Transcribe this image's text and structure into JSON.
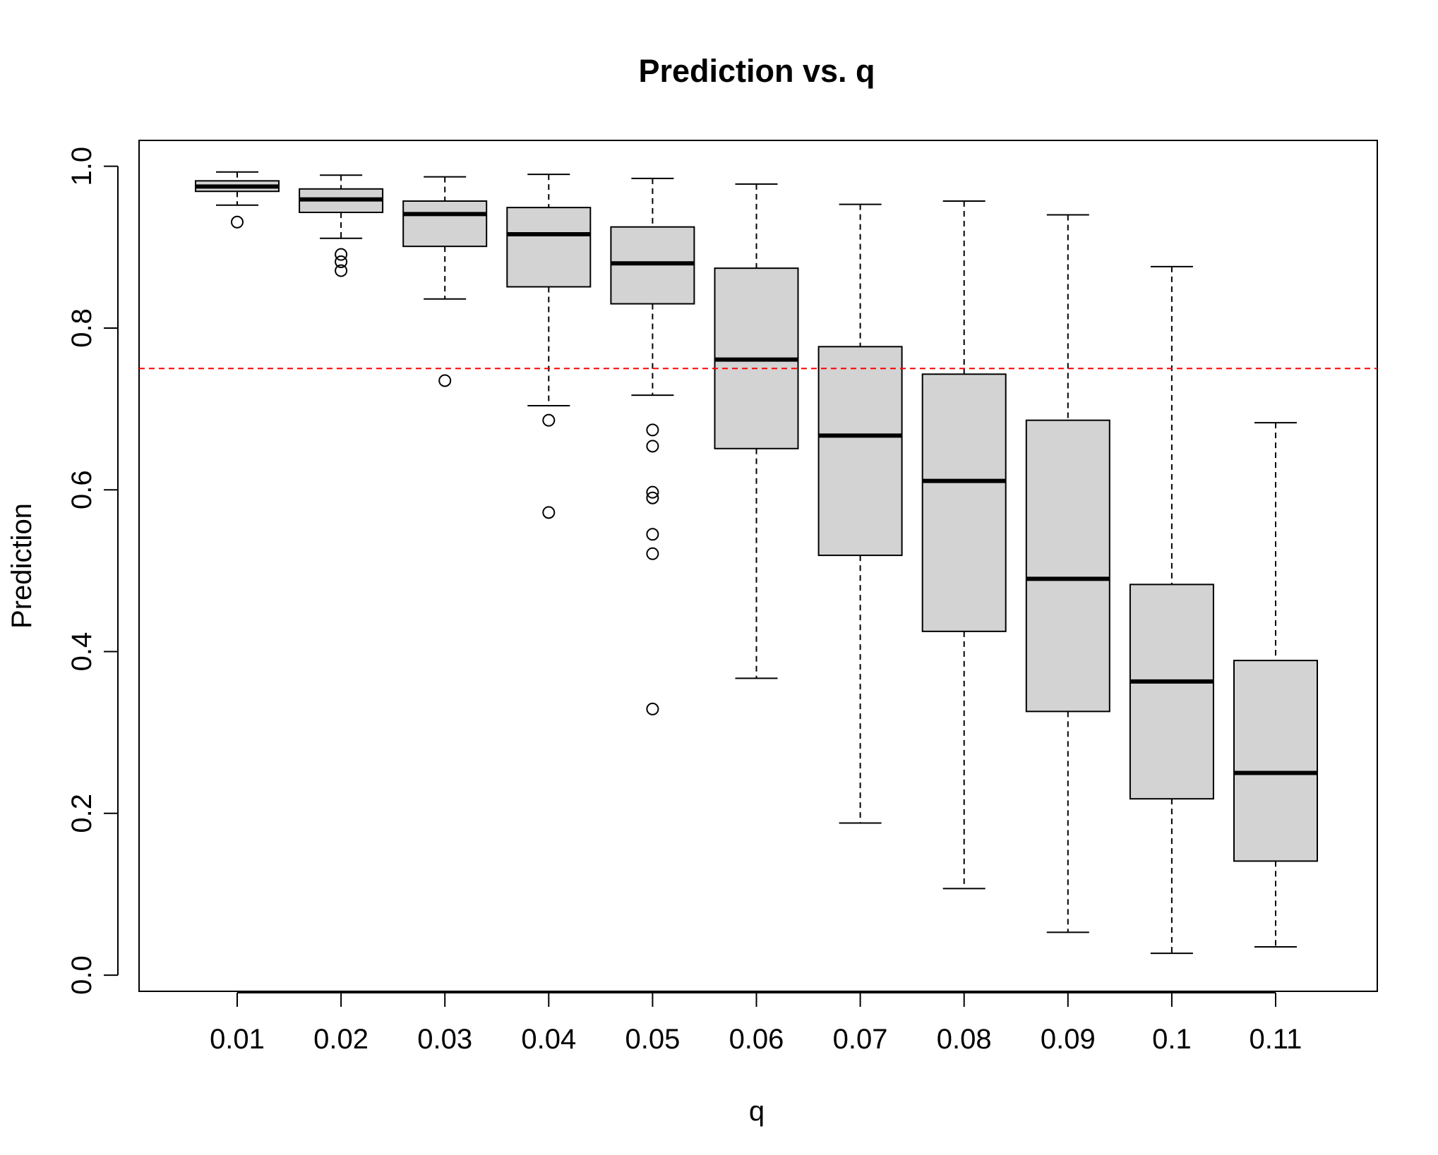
{
  "chart_data": {
    "type": "boxplot",
    "title": "Prediction vs. q",
    "xlabel": "q",
    "ylabel": "Prediction",
    "ylim": [
      -0.02,
      1.032
    ],
    "yticks": [
      "0.0",
      "0.2",
      "0.4",
      "0.6",
      "0.8",
      "1.0"
    ],
    "ytick_values": [
      0.0,
      0.2,
      0.4,
      0.6,
      0.8,
      1.0
    ],
    "grid": false,
    "reference_line": {
      "y": 0.75,
      "color": "#ff0000",
      "style": "dashed"
    },
    "box_fill": "#d3d3d3",
    "categories": [
      "0.01",
      "0.02",
      "0.03",
      "0.04",
      "0.05",
      "0.06",
      "0.07",
      "0.08",
      "0.09",
      "0.1",
      "0.11"
    ],
    "boxes": [
      {
        "whisker_low": 0.952,
        "q1": 0.969,
        "median": 0.975,
        "q3": 0.982,
        "whisker_high": 0.993,
        "outliers": [
          0.931
        ]
      },
      {
        "whisker_low": 0.911,
        "q1": 0.943,
        "median": 0.959,
        "q3": 0.972,
        "whisker_high": 0.989,
        "outliers": [
          0.891,
          0.882,
          0.871
        ]
      },
      {
        "whisker_low": 0.836,
        "q1": 0.901,
        "median": 0.941,
        "q3": 0.957,
        "whisker_high": 0.987,
        "outliers": [
          0.735
        ]
      },
      {
        "whisker_low": 0.704,
        "q1": 0.851,
        "median": 0.916,
        "q3": 0.949,
        "whisker_high": 0.99,
        "outliers": [
          0.686,
          0.572
        ]
      },
      {
        "whisker_low": 0.717,
        "q1": 0.83,
        "median": 0.88,
        "q3": 0.925,
        "whisker_high": 0.985,
        "outliers": [
          0.674,
          0.654,
          0.597,
          0.59,
          0.545,
          0.521,
          0.329
        ]
      },
      {
        "whisker_low": 0.367,
        "q1": 0.651,
        "median": 0.761,
        "q3": 0.874,
        "whisker_high": 0.978,
        "outliers": []
      },
      {
        "whisker_low": 0.188,
        "q1": 0.519,
        "median": 0.667,
        "q3": 0.777,
        "whisker_high": 0.953,
        "outliers": []
      },
      {
        "whisker_low": 0.107,
        "q1": 0.425,
        "median": 0.611,
        "q3": 0.743,
        "whisker_high": 0.957,
        "outliers": []
      },
      {
        "whisker_low": 0.053,
        "q1": 0.326,
        "median": 0.49,
        "q3": 0.686,
        "whisker_high": 0.94,
        "outliers": []
      },
      {
        "whisker_low": 0.027,
        "q1": 0.218,
        "median": 0.363,
        "q3": 0.483,
        "whisker_high": 0.876,
        "outliers": []
      },
      {
        "whisker_low": 0.035,
        "q1": 0.141,
        "median": 0.25,
        "q3": 0.389,
        "whisker_high": 0.683,
        "outliers": []
      }
    ]
  }
}
